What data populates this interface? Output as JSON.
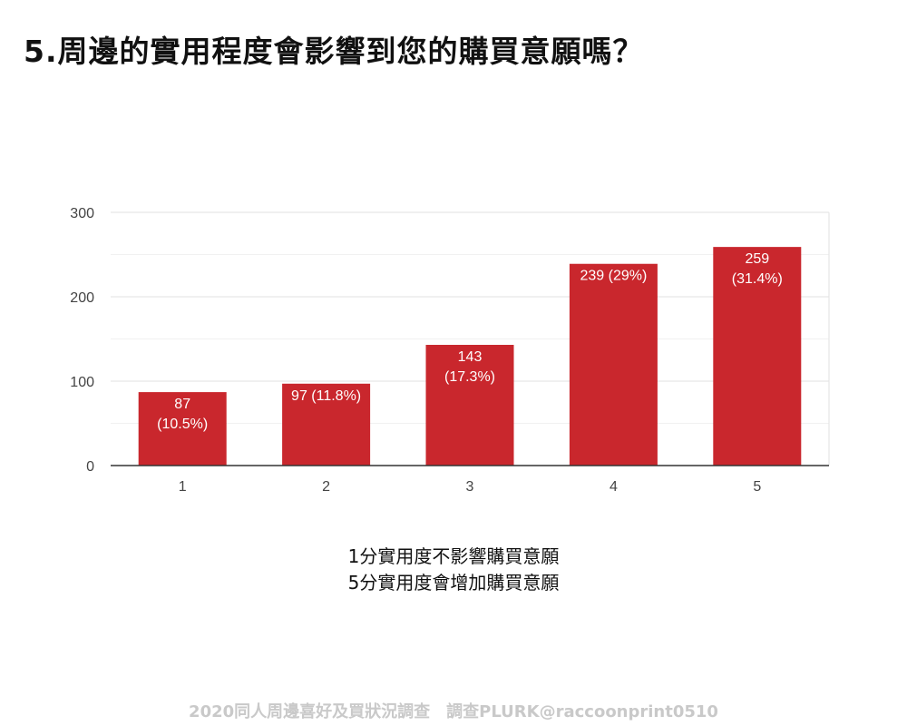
{
  "title": "5.周邊的實用程度會影響到您的購買意願嗎？",
  "chart_data": {
    "type": "bar",
    "categories": [
      "1",
      "2",
      "3",
      "4",
      "5"
    ],
    "values": [
      87,
      97,
      143,
      239,
      259
    ],
    "labels": [
      [
        "87",
        "(10.5%)"
      ],
      [
        "97 (11.8%)"
      ],
      [
        "143",
        "(17.3%)"
      ],
      [
        "239 (29%)"
      ],
      [
        "259",
        "(31.4%)"
      ]
    ],
    "yticks": [
      0,
      100,
      200,
      300
    ],
    "ylim": [
      0,
      300
    ],
    "grid": true,
    "bar_color": "#c9272d"
  },
  "caption": {
    "line1": "1分實用度不影響購買意願",
    "line2": "5分實用度會增加購買意願"
  },
  "footer": "2020同人周邊喜好及買狀況調查　調查PLURK@raccoonprint0510"
}
